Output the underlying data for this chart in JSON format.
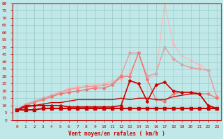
{
  "x": [
    0,
    1,
    2,
    3,
    4,
    5,
    6,
    7,
    8,
    9,
    10,
    11,
    12,
    13,
    14,
    15,
    16,
    17,
    18,
    19,
    20,
    21,
    22,
    23
  ],
  "xlabel": "Vent moyen/en rafales ( km/h )",
  "ylim": [
    0,
    80
  ],
  "yticks": [
    0,
    5,
    10,
    15,
    20,
    25,
    30,
    35,
    40,
    45,
    50,
    55,
    60,
    65,
    70,
    75,
    80
  ],
  "background_color": "#c0e8e8",
  "grid_color": "#98c8c8",
  "series": [
    {
      "values": [
        7,
        7,
        7,
        8,
        8,
        8,
        8,
        8,
        8,
        8,
        8,
        8,
        8,
        8,
        8,
        8,
        8,
        8,
        8,
        8,
        8,
        8,
        8,
        8
      ],
      "color": "#cc0000",
      "lw": 1.5,
      "marker": "s",
      "ms": 2.5,
      "zorder": 5
    },
    {
      "values": [
        7,
        9,
        10,
        10,
        10,
        10,
        9,
        9,
        9,
        9,
        9,
        9,
        10,
        27,
        25,
        13,
        24,
        26,
        20,
        19,
        19,
        18,
        10,
        8
      ],
      "color": "#cc0000",
      "lw": 1.2,
      "marker": "D",
      "ms": 2,
      "zorder": 4
    },
    {
      "values": [
        7,
        10,
        10,
        11,
        12,
        12,
        13,
        14,
        14,
        14,
        14,
        14,
        15,
        14,
        15,
        15,
        14,
        14,
        16,
        17,
        18,
        18,
        10,
        8
      ],
      "color": "#cc0000",
      "lw": 1.0,
      "marker": null,
      "ms": 0,
      "zorder": 3
    },
    {
      "values": [
        7,
        10,
        12,
        14,
        16,
        18,
        19,
        20,
        21,
        22,
        22,
        24,
        30,
        30,
        46,
        28,
        14,
        13,
        18,
        19,
        19,
        18,
        18,
        15
      ],
      "color": "#ee7777",
      "lw": 1.0,
      "marker": "D",
      "ms": 2,
      "zorder": 2
    },
    {
      "values": [
        7,
        11,
        13,
        15,
        17,
        19,
        21,
        22,
        23,
        23,
        24,
        25,
        31,
        46,
        46,
        30,
        32,
        50,
        42,
        38,
        36,
        35,
        34,
        16
      ],
      "color": "#ee9999",
      "lw": 1.0,
      "marker": "D",
      "ms": 2,
      "zorder": 1
    },
    {
      "values": [
        7,
        10,
        12,
        15,
        17,
        19,
        22,
        23,
        24,
        24,
        25,
        27,
        28,
        32,
        46,
        28,
        31,
        80,
        52,
        44,
        41,
        38,
        34,
        16
      ],
      "color": "#ffbbbb",
      "lw": 1.0,
      "marker": "D",
      "ms": 2,
      "zorder": 0
    }
  ]
}
